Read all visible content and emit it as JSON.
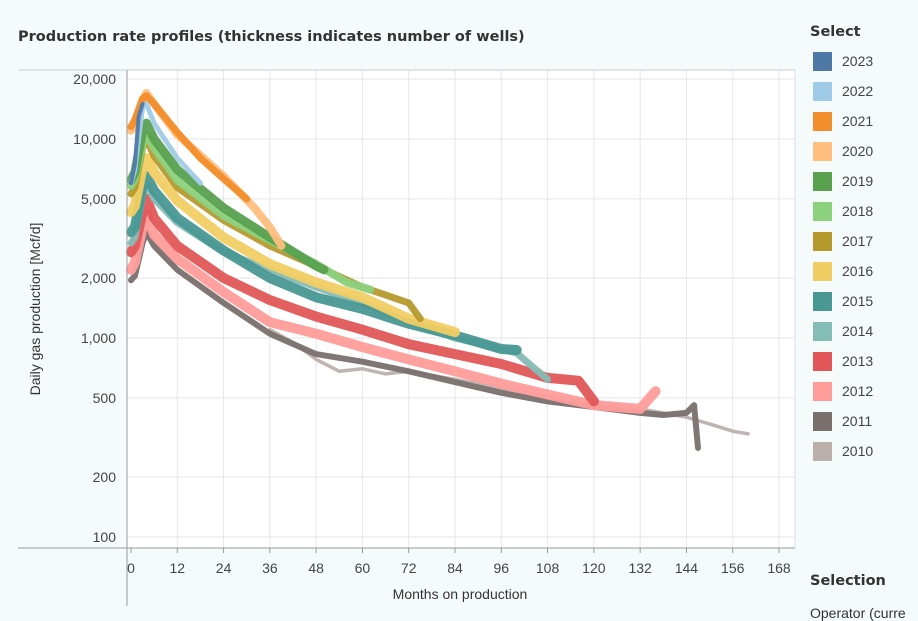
{
  "chart": {
    "title": "Production rate profiles (thickness indicates number of wells)"
  },
  "legend": {
    "title": "Select",
    "items": [
      {
        "label": "2023",
        "color": "#4e79a7"
      },
      {
        "label": "2022",
        "color": "#a0cbe8"
      },
      {
        "label": "2021",
        "color": "#f28e2b"
      },
      {
        "label": "2020",
        "color": "#ffbe7d"
      },
      {
        "label": "2019",
        "color": "#59a14f"
      },
      {
        "label": "2018",
        "color": "#8cd17d"
      },
      {
        "label": "2017",
        "color": "#b6992d"
      },
      {
        "label": "2016",
        "color": "#f1ce63"
      },
      {
        "label": "2015",
        "color": "#499894"
      },
      {
        "label": "2014",
        "color": "#86bcb6"
      },
      {
        "label": "2013",
        "color": "#e15759"
      },
      {
        "label": "2012",
        "color": "#ff9d9a"
      },
      {
        "label": "2011",
        "color": "#79706e"
      },
      {
        "label": "2010",
        "color": "#bab0ac"
      }
    ]
  },
  "selection": {
    "title": "Selection",
    "operator_label": "Operator (curre"
  },
  "chart_data": {
    "type": "line",
    "title": "Production rate profiles (thickness indicates number of wells)",
    "xlabel": "Months on production",
    "ylabel": "Daily gas production [Mcf/d]",
    "xlim": [
      0,
      168
    ],
    "ylim": [
      100,
      20000
    ],
    "yscale": "log",
    "xticks": [
      "0",
      "12",
      "24",
      "36",
      "48",
      "60",
      "72",
      "84",
      "96",
      "108",
      "120",
      "132",
      "144",
      "156",
      "168"
    ],
    "yticks": [
      "100",
      "200",
      "500",
      "1,000",
      "2,000",
      "5,000",
      "10,000",
      "20,000"
    ],
    "grid": true,
    "legend_position": "right",
    "series": [
      {
        "name": "2010",
        "color": "#bab0ac",
        "width": 3.5,
        "x": [
          36,
          42,
          48,
          54,
          60,
          66,
          72,
          84,
          96,
          108,
          120,
          132,
          144,
          150,
          156,
          160
        ],
        "y": [
          1100,
          950,
          780,
          680,
          700,
          660,
          680,
          620,
          560,
          510,
          480,
          440,
          400,
          370,
          340,
          330
        ]
      },
      {
        "name": "2011",
        "color": "#79706e",
        "width": 6,
        "x": [
          0,
          1,
          3,
          4,
          6,
          12,
          24,
          36,
          48,
          60,
          72,
          84,
          96,
          108,
          120,
          132,
          138,
          144,
          146,
          147
        ],
        "y": [
          1950,
          2050,
          3000,
          3400,
          2900,
          2200,
          1500,
          1050,
          830,
          760,
          680,
          600,
          530,
          480,
          450,
          420,
          410,
          420,
          460,
          280
        ]
      },
      {
        "name": "2012",
        "color": "#ff9d9a",
        "width": 10,
        "x": [
          0,
          1,
          3,
          4,
          6,
          12,
          24,
          36,
          48,
          60,
          72,
          84,
          96,
          108,
          120,
          132,
          136
        ],
        "y": [
          2200,
          2400,
          3600,
          4200,
          3300,
          2500,
          1700,
          1200,
          1050,
          900,
          780,
          680,
          590,
          520,
          460,
          440,
          540
        ]
      },
      {
        "name": "2013",
        "color": "#e15759",
        "width": 10,
        "x": [
          0,
          1,
          3,
          4,
          6,
          12,
          24,
          36,
          48,
          60,
          72,
          84,
          96,
          108,
          116,
          120
        ],
        "y": [
          2700,
          2900,
          4300,
          5000,
          4000,
          2900,
          2000,
          1550,
          1280,
          1100,
          930,
          830,
          740,
          630,
          610,
          480
        ]
      },
      {
        "name": "2014",
        "color": "#86bcb6",
        "width": 7,
        "x": [
          0,
          1,
          3,
          4,
          6,
          12,
          24,
          36,
          48,
          60,
          72,
          84,
          96,
          100,
          104,
          108
        ],
        "y": [
          3000,
          3200,
          5200,
          6000,
          5000,
          3800,
          2700,
          2200,
          1800,
          1500,
          1200,
          1000,
          880,
          840,
          720,
          620
        ]
      },
      {
        "name": "2015",
        "color": "#499894",
        "width": 10,
        "x": [
          0,
          1,
          3,
          4,
          6,
          12,
          24,
          36,
          48,
          60,
          72,
          84,
          96,
          100
        ],
        "y": [
          3400,
          3600,
          5800,
          6500,
          5500,
          4000,
          2750,
          2000,
          1600,
          1400,
          1180,
          1030,
          880,
          870
        ]
      },
      {
        "name": "2016",
        "color": "#f1ce63",
        "width": 10,
        "x": [
          0,
          1,
          3,
          4,
          6,
          12,
          24,
          36,
          48,
          60,
          72,
          84
        ],
        "y": [
          4300,
          4600,
          7200,
          8000,
          6800,
          4900,
          3200,
          2350,
          1900,
          1600,
          1250,
          1070
        ]
      },
      {
        "name": "2017",
        "color": "#b6992d",
        "width": 7,
        "x": [
          0,
          1,
          3,
          4,
          6,
          12,
          24,
          36,
          48,
          60,
          72,
          75
        ],
        "y": [
          5300,
          5700,
          9000,
          10000,
          8200,
          5700,
          3900,
          2900,
          2300,
          1800,
          1500,
          1250
        ]
      },
      {
        "name": "2018",
        "color": "#8cd17d",
        "width": 8,
        "x": [
          0,
          1,
          3,
          4,
          6,
          12,
          24,
          36,
          48,
          56,
          62
        ],
        "y": [
          5800,
          6300,
          9500,
          10500,
          9000,
          6200,
          4100,
          3100,
          2350,
          1900,
          1750
        ]
      },
      {
        "name": "2019",
        "color": "#59a14f",
        "width": 9,
        "x": [
          0,
          1,
          3,
          4,
          6,
          12,
          24,
          36,
          48,
          50
        ],
        "y": [
          6200,
          6800,
          11000,
          12000,
          10000,
          7000,
          4500,
          3200,
          2300,
          2200
        ]
      },
      {
        "name": "2020",
        "color": "#ffbe7d",
        "width": 8,
        "x": [
          0,
          1,
          3,
          4,
          6,
          12,
          24,
          32,
          36,
          39
        ],
        "y": [
          11000,
          11500,
          15500,
          17000,
          15000,
          10500,
          6500,
          4500,
          3600,
          2900
        ]
      },
      {
        "name": "2021",
        "color": "#f28e2b",
        "width": 7,
        "x": [
          0,
          1,
          3,
          4,
          6,
          12,
          18,
          24,
          30
        ],
        "y": [
          11500,
          12500,
          16000,
          16500,
          15000,
          10800,
          8000,
          6300,
          5000
        ]
      },
      {
        "name": "2022",
        "color": "#a0cbe8",
        "width": 5,
        "x": [
          0,
          1,
          3,
          4,
          6,
          12,
          18
        ],
        "y": [
          6000,
          7000,
          14500,
          15000,
          12000,
          8000,
          6000
        ]
      },
      {
        "name": "2023",
        "color": "#4e79a7",
        "width": 4,
        "x": [
          0,
          1,
          2,
          3
        ],
        "y": [
          6000,
          7500,
          13000,
          15000
        ]
      }
    ]
  }
}
